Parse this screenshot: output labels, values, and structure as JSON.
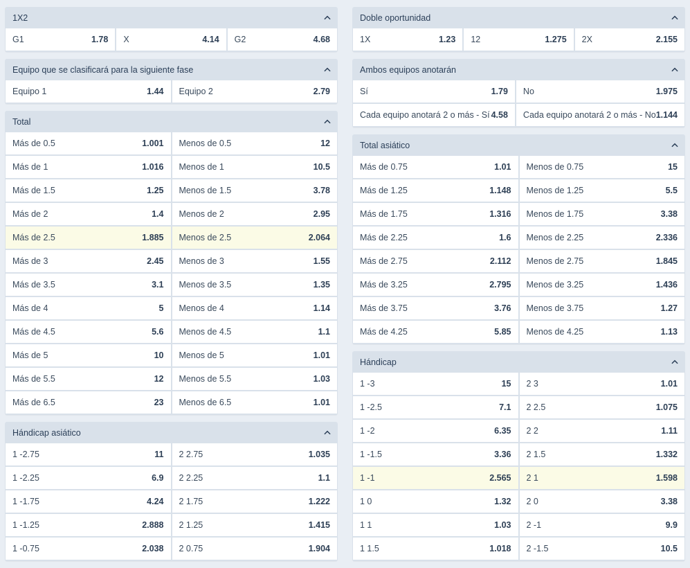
{
  "left": [
    {
      "title": "1X2",
      "cols": 3,
      "rows": [
        [
          {
            "label": "G1",
            "odd": "1.78"
          },
          {
            "label": "X",
            "odd": "4.14"
          },
          {
            "label": "G2",
            "odd": "4.68"
          }
        ]
      ]
    },
    {
      "title": "Equipo que se clasificará para la siguiente fase",
      "cols": 2,
      "rows": [
        [
          {
            "label": "Equipo 1",
            "odd": "1.44"
          },
          {
            "label": "Equipo 2",
            "odd": "2.79"
          }
        ]
      ]
    },
    {
      "title": "Total",
      "cols": 2,
      "rows": [
        [
          {
            "label": "Más de 0.5",
            "odd": "1.001"
          },
          {
            "label": "Menos de 0.5",
            "odd": "12"
          }
        ],
        [
          {
            "label": "Más de 1",
            "odd": "1.016"
          },
          {
            "label": "Menos de 1",
            "odd": "10.5"
          }
        ],
        [
          {
            "label": "Más de 1.5",
            "odd": "1.25"
          },
          {
            "label": "Menos de 1.5",
            "odd": "3.78"
          }
        ],
        [
          {
            "label": "Más de 2",
            "odd": "1.4"
          },
          {
            "label": "Menos de 2",
            "odd": "2.95"
          }
        ],
        [
          {
            "label": "Más de 2.5",
            "odd": "1.885",
            "highlight": true
          },
          {
            "label": "Menos de 2.5",
            "odd": "2.064",
            "highlight": true
          }
        ],
        [
          {
            "label": "Más de 3",
            "odd": "2.45"
          },
          {
            "label": "Menos de 3",
            "odd": "1.55"
          }
        ],
        [
          {
            "label": "Más de 3.5",
            "odd": "3.1"
          },
          {
            "label": "Menos de 3.5",
            "odd": "1.35"
          }
        ],
        [
          {
            "label": "Más de 4",
            "odd": "5"
          },
          {
            "label": "Menos de 4",
            "odd": "1.14"
          }
        ],
        [
          {
            "label": "Más de 4.5",
            "odd": "5.6"
          },
          {
            "label": "Menos de 4.5",
            "odd": "1.1"
          }
        ],
        [
          {
            "label": "Más de 5",
            "odd": "10"
          },
          {
            "label": "Menos de 5",
            "odd": "1.01"
          }
        ],
        [
          {
            "label": "Más de 5.5",
            "odd": "12"
          },
          {
            "label": "Menos de 5.5",
            "odd": "1.03"
          }
        ],
        [
          {
            "label": "Más de 6.5",
            "odd": "23"
          },
          {
            "label": "Menos de 6.5",
            "odd": "1.01"
          }
        ]
      ]
    },
    {
      "title": "Hándicap asiático",
      "cols": 2,
      "rows": [
        [
          {
            "label": "1 -2.75",
            "odd": "11"
          },
          {
            "label": "2 2.75",
            "odd": "1.035"
          }
        ],
        [
          {
            "label": "1 -2.25",
            "odd": "6.9"
          },
          {
            "label": "2 2.25",
            "odd": "1.1"
          }
        ],
        [
          {
            "label": "1 -1.75",
            "odd": "4.24"
          },
          {
            "label": "2 1.75",
            "odd": "1.222"
          }
        ],
        [
          {
            "label": "1 -1.25",
            "odd": "2.888"
          },
          {
            "label": "2 1.25",
            "odd": "1.415"
          }
        ],
        [
          {
            "label": "1 -0.75",
            "odd": "2.038"
          },
          {
            "label": "2 0.75",
            "odd": "1.904"
          }
        ]
      ]
    }
  ],
  "right": [
    {
      "title": "Doble oportunidad",
      "cols": 3,
      "rows": [
        [
          {
            "label": "1X",
            "odd": "1.23"
          },
          {
            "label": "12",
            "odd": "1.275"
          },
          {
            "label": "2X",
            "odd": "2.155"
          }
        ]
      ]
    },
    {
      "title": "Ambos equipos anotarán",
      "cols": 2,
      "rows": [
        [
          {
            "label": "Sí",
            "odd": "1.79"
          },
          {
            "label": "No",
            "odd": "1.975"
          }
        ],
        [
          {
            "label": "Cada equipo anotará 2 o más - Sí",
            "odd": "4.58"
          },
          {
            "label": "Cada equipo anotará 2 o más - No",
            "odd": "1.144"
          }
        ]
      ]
    },
    {
      "title": "Total asiático",
      "cols": 2,
      "rows": [
        [
          {
            "label": "Más de 0.75",
            "odd": "1.01"
          },
          {
            "label": "Menos de 0.75",
            "odd": "15"
          }
        ],
        [
          {
            "label": "Más de 1.25",
            "odd": "1.148"
          },
          {
            "label": "Menos de 1.25",
            "odd": "5.5"
          }
        ],
        [
          {
            "label": "Más de 1.75",
            "odd": "1.316"
          },
          {
            "label": "Menos de 1.75",
            "odd": "3.38"
          }
        ],
        [
          {
            "label": "Más de 2.25",
            "odd": "1.6"
          },
          {
            "label": "Menos de 2.25",
            "odd": "2.336"
          }
        ],
        [
          {
            "label": "Más de 2.75",
            "odd": "2.112"
          },
          {
            "label": "Menos de 2.75",
            "odd": "1.845"
          }
        ],
        [
          {
            "label": "Más de 3.25",
            "odd": "2.795"
          },
          {
            "label": "Menos de 3.25",
            "odd": "1.436"
          }
        ],
        [
          {
            "label": "Más de 3.75",
            "odd": "3.76"
          },
          {
            "label": "Menos de 3.75",
            "odd": "1.27"
          }
        ],
        [
          {
            "label": "Más de 4.25",
            "odd": "5.85"
          },
          {
            "label": "Menos de 4.25",
            "odd": "1.13"
          }
        ]
      ]
    },
    {
      "title": "Hándicap",
      "cols": 2,
      "rows": [
        [
          {
            "label": "1 -3",
            "odd": "15"
          },
          {
            "label": "2 3",
            "odd": "1.01"
          }
        ],
        [
          {
            "label": "1 -2.5",
            "odd": "7.1"
          },
          {
            "label": "2 2.5",
            "odd": "1.075"
          }
        ],
        [
          {
            "label": "1 -2",
            "odd": "6.35"
          },
          {
            "label": "2 2",
            "odd": "1.11"
          }
        ],
        [
          {
            "label": "1 -1.5",
            "odd": "3.36"
          },
          {
            "label": "2 1.5",
            "odd": "1.332"
          }
        ],
        [
          {
            "label": "1 -1",
            "odd": "2.565",
            "highlight": true
          },
          {
            "label": "2 1",
            "odd": "1.598",
            "highlight": true
          }
        ],
        [
          {
            "label": "1 0",
            "odd": "1.32"
          },
          {
            "label": "2 0",
            "odd": "3.38"
          }
        ],
        [
          {
            "label": "1 1",
            "odd": "1.03"
          },
          {
            "label": "2 -1",
            "odd": "9.9"
          }
        ],
        [
          {
            "label": "1 1.5",
            "odd": "1.018"
          },
          {
            "label": "2 -1.5",
            "odd": "10.5"
          }
        ]
      ]
    }
  ],
  "icons": {
    "collapse": "chevron-up-icon"
  },
  "colors": {
    "page_bg": "#e9eef4",
    "header_bg": "#d9e1ea",
    "cell_bg": "#ffffff",
    "highlight_bg": "#fbfbe6",
    "text": "#2a3a4d"
  }
}
